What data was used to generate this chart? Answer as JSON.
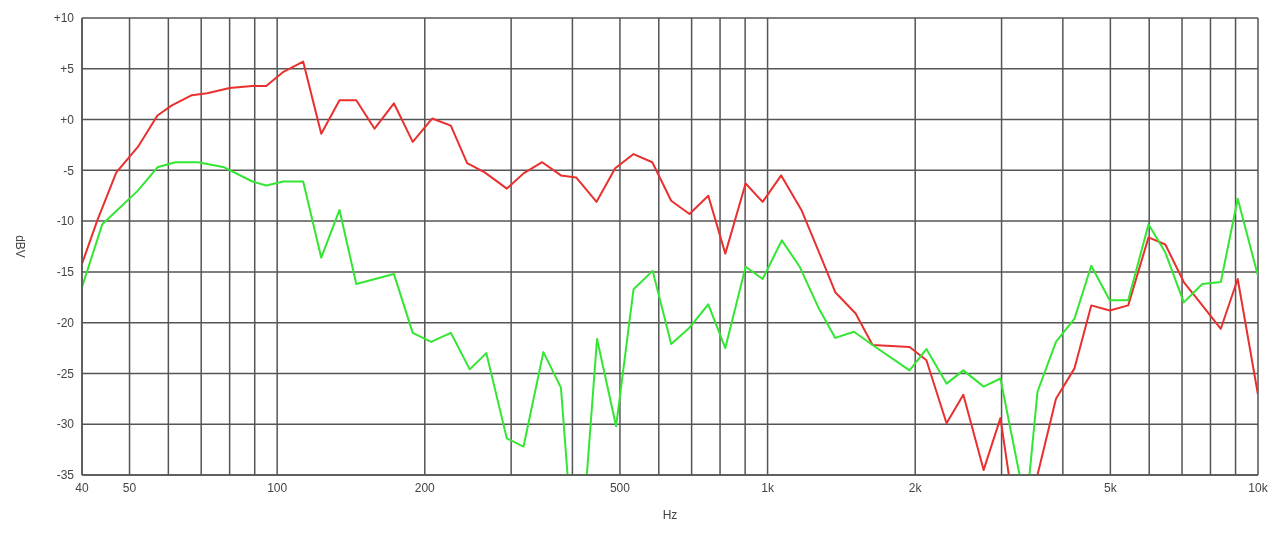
{
  "chart_data": {
    "type": "line",
    "xlabel": "Hz",
    "ylabel": "dBV",
    "log": "x",
    "grid": true,
    "marker": "none",
    "line_style": "solid",
    "xlim": [
      40,
      10000
    ],
    "ylim": [
      -35,
      10
    ],
    "xticks": [
      40,
      50,
      {
        "value": 60,
        "label": null
      },
      {
        "value": 70,
        "label": null
      },
      {
        "value": 80,
        "label": null
      },
      {
        "value": 90,
        "label": null
      },
      100,
      200,
      {
        "value": 300,
        "label": null
      },
      {
        "value": 400,
        "label": null
      },
      500,
      {
        "value": 600,
        "label": null
      },
      {
        "value": 700,
        "label": null
      },
      {
        "value": 800,
        "label": null
      },
      {
        "value": 900,
        "label": null
      },
      {
        "value": 1000,
        "label": "1k"
      },
      {
        "value": 2000,
        "label": "2k"
      },
      {
        "value": 3000,
        "label": null
      },
      {
        "value": 4000,
        "label": null
      },
      {
        "value": 5000,
        "label": "5k"
      },
      {
        "value": 6000,
        "label": null
      },
      {
        "value": 7000,
        "label": null
      },
      {
        "value": 8000,
        "label": null
      },
      {
        "value": 9000,
        "label": null
      },
      {
        "value": 10000,
        "label": "10k"
      }
    ],
    "yticks": [
      {
        "value": 10,
        "label": "+10"
      },
      {
        "value": 5,
        "label": "+5"
      },
      {
        "value": 0,
        "label": "+0"
      },
      -5,
      -10,
      -15,
      -20,
      -25,
      -30,
      -35
    ],
    "series": [
      {
        "color": "#e8302f",
        "x": [
          40,
          43,
          47,
          52,
          57,
          61,
          67,
          72,
          80,
          89,
          95,
          103,
          113,
          123,
          134,
          145,
          158,
          173,
          189,
          207,
          226,
          244,
          265,
          294,
          318,
          347,
          379,
          407,
          448,
          489,
          533,
          582,
          636,
          693,
          757,
          820,
          902,
          977,
          1066,
          1172,
          1269,
          1374,
          1512,
          1637,
          1948,
          2108,
          2317,
          2507,
          2758,
          2984,
          3104,
          3300,
          3551,
          3873,
          4225,
          4571,
          4985,
          5437,
          5981,
          6472,
          7058,
          7700,
          8398,
          9092,
          10000
        ],
        "values": [
          -14.2,
          -9.9,
          -5.2,
          -2.7,
          0.4,
          1.4,
          2.4,
          2.6,
          3.1,
          3.3,
          3.3,
          4.7,
          5.7,
          -1.4,
          1.9,
          1.9,
          -0.9,
          1.6,
          -2.2,
          0.1,
          -0.6,
          -4.3,
          -5.2,
          -6.8,
          -5.3,
          -4.2,
          -5.5,
          -5.7,
          -8.1,
          -4.8,
          -3.4,
          -4.2,
          -8.0,
          -9.3,
          -7.5,
          -13.2,
          -6.3,
          -8.1,
          -5.5,
          -8.9,
          -12.9,
          -17.0,
          -19.1,
          -22.2,
          -22.4,
          -23.7,
          -29.9,
          -27.1,
          -34.5,
          -29.4,
          -35,
          null,
          -35,
          -27.5,
          -24.5,
          -18.3,
          -18.8,
          -18.3,
          -11.6,
          -12.3,
          -16.0,
          -18.3,
          -20.6,
          -15.7,
          -27.1
        ]
      },
      {
        "color": "#33e633",
        "x": [
          40,
          44,
          47,
          52,
          57,
          62,
          69,
          78,
          89,
          95,
          103,
          113,
          123,
          134,
          145,
          173,
          189,
          206,
          226,
          247,
          267,
          294,
          318,
          349,
          379,
          391,
          410,
          428,
          449,
          491,
          533,
          583,
          636,
          693,
          757,
          820,
          902,
          977,
          1069,
          1163,
          1269,
          1374,
          1500,
          1637,
          1948,
          2108,
          2317,
          2507,
          2758,
          2984,
          3265,
          3340,
          3420,
          3551,
          3873,
          4225,
          4571,
          4985,
          5437,
          5981,
          6472,
          7058,
          7700,
          8398,
          9092,
          10000
        ],
        "values": [
          -16.5,
          -10.3,
          -9.0,
          -7.0,
          -4.7,
          -4.2,
          -4.2,
          -4.7,
          -6.1,
          -6.5,
          -6.1,
          -6.1,
          -13.6,
          -8.9,
          -16.2,
          -15.2,
          -21.0,
          -21.9,
          -21.0,
          -24.6,
          -23.0,
          -31.4,
          -32.2,
          -22.9,
          -26.4,
          -35,
          null,
          -35,
          -21.6,
          -30.2,
          -16.7,
          -14.9,
          -22.1,
          -20.5,
          -18.2,
          -22.5,
          -14.5,
          -15.7,
          -11.9,
          -14.5,
          -18.5,
          -21.5,
          -20.9,
          -22.2,
          -24.7,
          -22.6,
          -26.0,
          -24.7,
          -26.3,
          -25.5,
          -35,
          null,
          -35,
          -26.8,
          -21.9,
          -19.6,
          -14.4,
          -17.8,
          -17.8,
          -10.3,
          -13.1,
          -18.0,
          -16.2,
          -16.0,
          -7.8,
          -15.4
        ]
      }
    ]
  }
}
